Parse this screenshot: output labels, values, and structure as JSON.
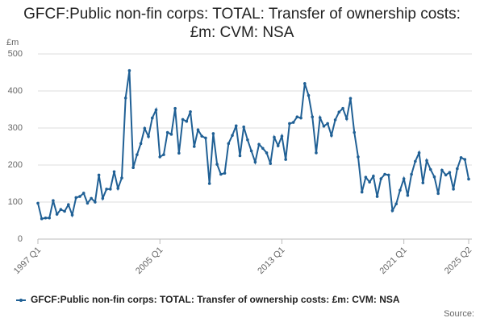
{
  "chart_data": {
    "type": "line",
    "title": "GFCF:Public non-fin corps: TOTAL: Transfer of ownership costs: £m: CVM: NSA",
    "y_unit": "£m",
    "source": "Source:",
    "categories": [
      "1997 Q1",
      null,
      null,
      null,
      null,
      null,
      null,
      null,
      null,
      null,
      null,
      null,
      null,
      null,
      null,
      null,
      null,
      null,
      null,
      null,
      null,
      null,
      null,
      null,
      null,
      null,
      null,
      null,
      null,
      null,
      null,
      null,
      "2005 Q1",
      null,
      null,
      null,
      null,
      null,
      null,
      null,
      null,
      null,
      null,
      null,
      null,
      null,
      null,
      null,
      null,
      null,
      null,
      null,
      null,
      null,
      null,
      null,
      null,
      null,
      null,
      null,
      null,
      null,
      null,
      null,
      "2013 Q1",
      null,
      null,
      null,
      null,
      null,
      null,
      null,
      null,
      null,
      null,
      null,
      null,
      null,
      null,
      null,
      null,
      null,
      null,
      null,
      null,
      null,
      null,
      null,
      null,
      null,
      null,
      null,
      null,
      null,
      null,
      null,
      "2021 Q1",
      null,
      null,
      null,
      null,
      null,
      null,
      null,
      null,
      null,
      null,
      null,
      null,
      null,
      null,
      null,
      null,
      "2025 Q2"
    ],
    "series": [
      {
        "name": "GFCF:Public non-fin corps: TOTAL: Transfer of ownership costs: £m: CVM: NSA",
        "color": "#206095",
        "values": [
          97,
          55,
          57,
          57,
          104,
          67,
          80,
          75,
          93,
          65,
          112,
          115,
          124,
          97,
          110,
          100,
          173,
          110,
          135,
          135,
          182,
          137,
          165,
          381,
          455,
          193,
          228,
          258,
          299,
          277,
          327,
          349,
          222,
          228,
          288,
          283,
          353,
          232,
          323,
          318,
          344,
          250,
          295,
          278,
          273,
          150,
          285,
          202,
          175,
          178,
          258,
          280,
          306,
          225,
          303,
          268,
          238,
          208,
          256,
          245,
          233,
          204,
          275,
          252,
          278,
          215,
          312,
          315,
          330,
          327,
          420,
          388,
          330,
          233,
          328,
          305,
          312,
          280,
          322,
          343,
          353,
          325,
          380,
          288,
          222,
          127,
          167,
          154,
          170,
          115,
          163,
          175,
          173,
          77,
          95,
          132,
          163,
          118,
          175,
          210,
          233,
          152,
          212,
          188,
          168,
          123,
          186,
          173,
          180,
          135,
          190,
          220,
          215,
          162
        ]
      }
    ],
    "ylim": [
      0,
      500
    ],
    "yticks": [
      0,
      100,
      200,
      300,
      400,
      500
    ],
    "grid": true
  }
}
